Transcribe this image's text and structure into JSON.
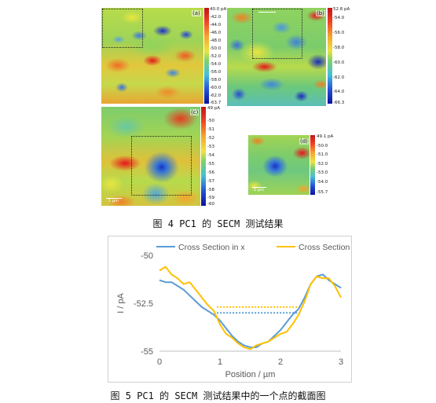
{
  "figure4": {
    "caption": "图 4 PC1 的 SECM 测试结果",
    "panels": [
      {
        "label": "(a)",
        "ticks": [
          "40.0 pA",
          "-42.0",
          "-44.0",
          "-46.0",
          "-48.0",
          "-50.0",
          "-52.0",
          "-54.0",
          "-56.0",
          "-58.0",
          "-60.0",
          "-62.0",
          "-63.7"
        ]
      },
      {
        "label": "(b)",
        "ticks": [
          "52.8 pA",
          "-54.0",
          "-56.0",
          "-58.0",
          "-60.0",
          "-62.0",
          "-64.0",
          "-66.3"
        ]
      },
      {
        "label": "(c)",
        "ticks": [
          "49 pA",
          "-50",
          "-51",
          "-52",
          "-53",
          "-54",
          "-55",
          "-56",
          "-57",
          "-58",
          "-59",
          "-60"
        ],
        "scale_label": "1 µm"
      },
      {
        "label": "(d)",
        "ticks": [
          "49.1 pA",
          "-50.0",
          "-51.0",
          "-52.0",
          "-53.0",
          "-54.0",
          "-55.7"
        ],
        "scale_label": "1 µm"
      }
    ]
  },
  "figure5": {
    "caption": "图 5 PC1 的 SECM 测试结果中的一个点的截面图"
  },
  "chart_data": {
    "type": "line",
    "title": "",
    "xlabel": "Position / µm",
    "ylabel": "I / pA",
    "xlim": [
      0,
      3
    ],
    "ylim": [
      -55,
      -50
    ],
    "x_ticks": [
      0,
      1,
      2,
      3
    ],
    "y_ticks": [
      -50,
      -52.5,
      -55
    ],
    "y_tick_labels": [
      "-50",
      "-52.5",
      "-55"
    ],
    "legend_position": "top",
    "grid": false,
    "series": [
      {
        "name": "Cross Section in x",
        "color": "#5B9BD5",
        "x": [
          0,
          0.1,
          0.2,
          0.3,
          0.4,
          0.5,
          0.6,
          0.7,
          0.8,
          0.9,
          1.0,
          1.1,
          1.2,
          1.3,
          1.4,
          1.5,
          1.6,
          1.7,
          1.8,
          1.9,
          2.0,
          2.1,
          2.2,
          2.3,
          2.4,
          2.5,
          2.6,
          2.7,
          2.8,
          2.9,
          3.0
        ],
        "y": [
          -51.3,
          -51.4,
          -51.4,
          -51.6,
          -51.8,
          -52.1,
          -52.4,
          -52.7,
          -52.9,
          -53.1,
          -53.4,
          -53.8,
          -54.2,
          -54.5,
          -54.7,
          -54.8,
          -54.8,
          -54.6,
          -54.5,
          -54.2,
          -53.9,
          -53.5,
          -53.1,
          -52.8,
          -52.2,
          -51.5,
          -51.1,
          -51.0,
          -51.3,
          -51.5,
          -51.7
        ]
      },
      {
        "name": "Cross Section in y",
        "color": "#FFC000",
        "x": [
          0,
          0.1,
          0.2,
          0.3,
          0.4,
          0.5,
          0.6,
          0.7,
          0.8,
          0.9,
          1.0,
          1.1,
          1.2,
          1.3,
          1.4,
          1.5,
          1.6,
          1.7,
          1.8,
          1.9,
          2.0,
          2.1,
          2.2,
          2.3,
          2.4,
          2.5,
          2.6,
          2.7,
          2.8,
          2.9,
          3.0
        ],
        "y": [
          -50.8,
          -50.6,
          -51.0,
          -51.2,
          -51.5,
          -51.4,
          -51.8,
          -52.2,
          -52.6,
          -52.9,
          -53.6,
          -54.1,
          -54.3,
          -54.6,
          -54.8,
          -54.9,
          -54.7,
          -54.6,
          -54.5,
          -54.3,
          -54.1,
          -54.0,
          -53.6,
          -53.1,
          -52.4,
          -51.5,
          -51.1,
          -51.2,
          -51.2,
          -51.6,
          -52.2
        ]
      }
    ],
    "reference_lines": [
      {
        "y": -52.7,
        "x": [
          0.95,
          2.35
        ],
        "color": "#FFC000",
        "style": "dotted"
      },
      {
        "y": -53.0,
        "x": [
          0.95,
          2.35
        ],
        "color": "#5B9BD5",
        "style": "dotted"
      }
    ]
  },
  "colors": {
    "jet_red": "#e4161b",
    "jet_orange": "#f07e26",
    "jet_yellow": "#e9e540",
    "jet_green": "#63c56a",
    "jet_cyan": "#4ab8d6",
    "jet_blue": "#2b52d6",
    "jet_darkblue": "#0a129c"
  }
}
